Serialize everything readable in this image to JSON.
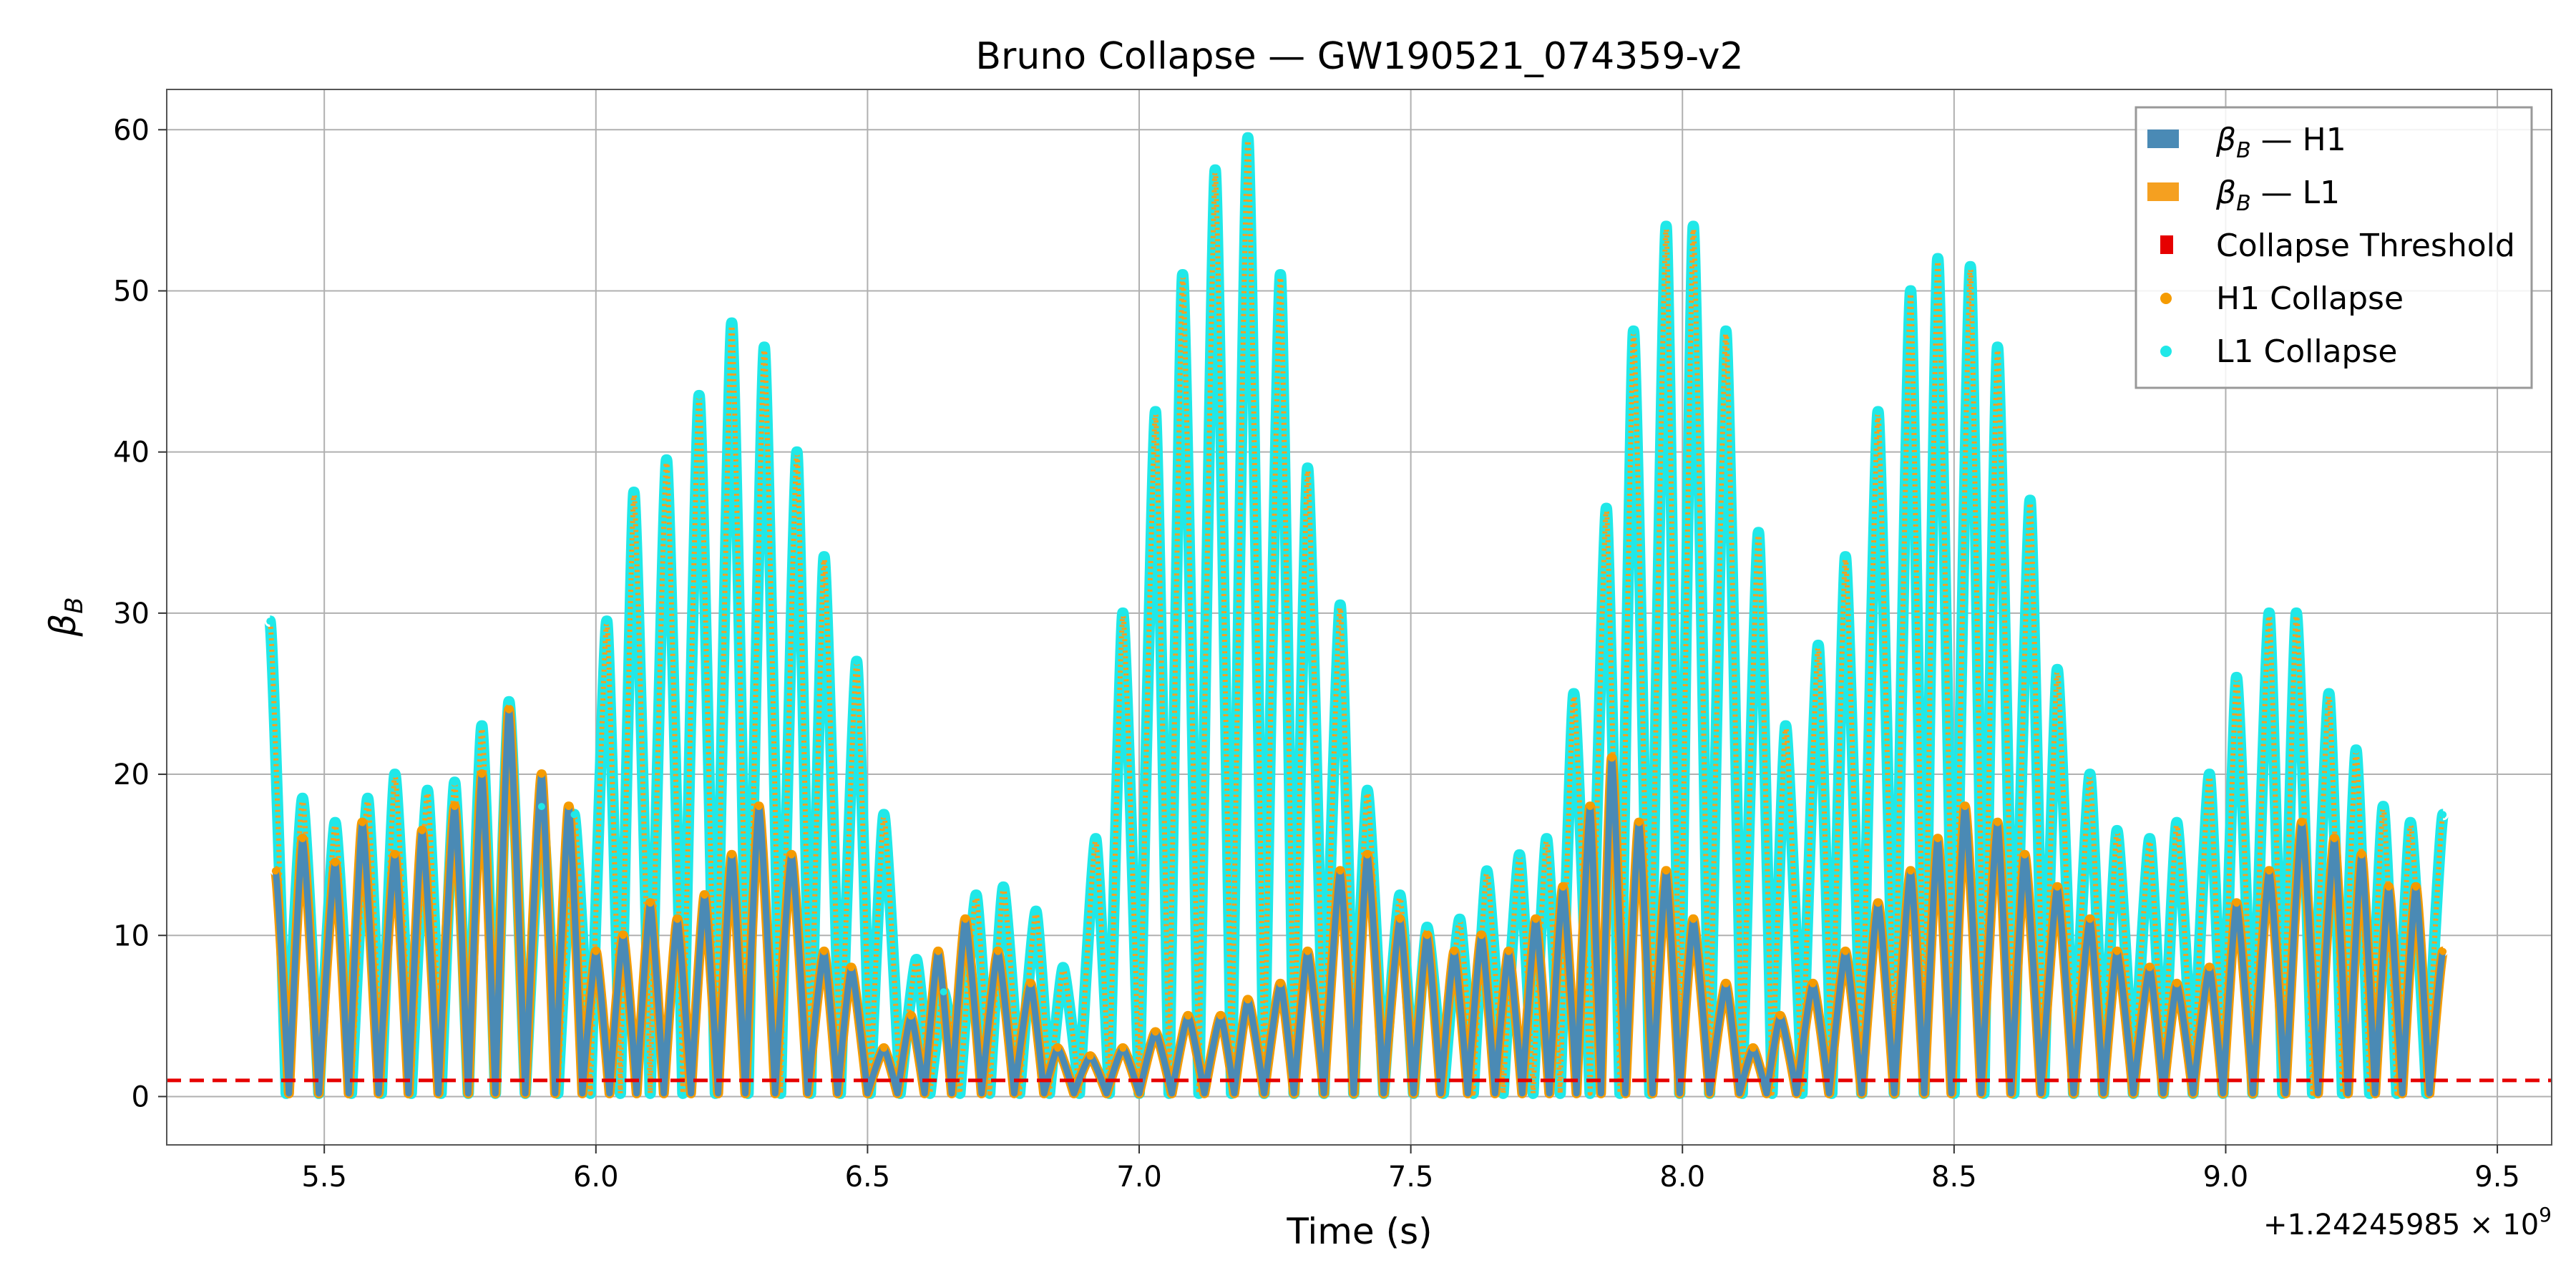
{
  "chart_data": {
    "type": "line",
    "title": "Bruno Collapse — GW190521_074359-v2",
    "xlabel": "Time (s)",
    "ylabel": "β_B",
    "x_offset_text": "+1.24245985 × 10^9",
    "xlim": [
      5.21,
      9.6
    ],
    "ylim": [
      -3,
      62.5
    ],
    "xticks": [
      5.5,
      6.0,
      6.5,
      7.0,
      7.5,
      8.0,
      8.5,
      9.0,
      9.5
    ],
    "xtick_labels": [
      "5.5",
      "6.0",
      "6.5",
      "7.0",
      "7.5",
      "8.0",
      "8.5",
      "9.0",
      "9.5"
    ],
    "yticks": [
      0,
      10,
      20,
      30,
      40,
      50,
      60
    ],
    "ytick_labels": [
      "0",
      "10",
      "20",
      "30",
      "40",
      "50",
      "60"
    ],
    "grid": true,
    "legend_position": "top-right",
    "colors": {
      "h1": "#4a8ab5",
      "l1": "#f5a020",
      "threshold": "#e60000",
      "h1_collapse": "#f59b00",
      "l1_collapse": "#20e8e8"
    },
    "threshold": 1.0,
    "legend": [
      {
        "label": "β_B — H1",
        "marker": "patch",
        "color": "#4a8ab5"
      },
      {
        "label": "β_B — L1",
        "marker": "patch",
        "color": "#f5a020"
      },
      {
        "label": "Collapse Threshold",
        "marker": "square",
        "color": "#e60000"
      },
      {
        "label": "H1 Collapse",
        "marker": "dot",
        "color": "#f59b00"
      },
      {
        "label": "L1 Collapse",
        "marker": "dot",
        "color": "#20e8e8"
      }
    ],
    "series": [
      {
        "name": "β_B — H1",
        "peaks": [
          [
            5.41,
            14.0
          ],
          [
            5.46,
            16.0
          ],
          [
            5.52,
            14.5
          ],
          [
            5.57,
            17.0
          ],
          [
            5.63,
            15.0
          ],
          [
            5.68,
            16.5
          ],
          [
            5.74,
            18.0
          ],
          [
            5.79,
            20.0
          ],
          [
            5.84,
            24.0
          ],
          [
            5.9,
            20.0
          ],
          [
            5.95,
            18.0
          ],
          [
            6.0,
            9.0
          ],
          [
            6.05,
            10.0
          ],
          [
            6.1,
            12.0
          ],
          [
            6.15,
            11.0
          ],
          [
            6.2,
            12.5
          ],
          [
            6.25,
            15.0
          ],
          [
            6.3,
            18.0
          ],
          [
            6.36,
            15.0
          ],
          [
            6.42,
            9.0
          ],
          [
            6.47,
            8.0
          ],
          [
            6.53,
            3.0
          ],
          [
            6.58,
            5.0
          ],
          [
            6.63,
            9.0
          ],
          [
            6.68,
            11.0
          ],
          [
            6.74,
            9.0
          ],
          [
            6.8,
            7.0
          ],
          [
            6.85,
            3.0
          ],
          [
            6.91,
            2.5
          ],
          [
            6.97,
            3.0
          ],
          [
            7.03,
            4.0
          ],
          [
            7.09,
            5.0
          ],
          [
            7.15,
            5.0
          ],
          [
            7.2,
            6.0
          ],
          [
            7.26,
            7.0
          ],
          [
            7.31,
            9.0
          ],
          [
            7.37,
            14.0
          ],
          [
            7.42,
            15.0
          ],
          [
            7.48,
            11.0
          ],
          [
            7.53,
            10.0
          ],
          [
            7.58,
            9.0
          ],
          [
            7.63,
            10.0
          ],
          [
            7.68,
            9.0
          ],
          [
            7.73,
            11.0
          ],
          [
            7.78,
            13.0
          ],
          [
            7.83,
            18.0
          ],
          [
            7.87,
            21.0
          ],
          [
            7.92,
            17.0
          ],
          [
            7.97,
            14.0
          ],
          [
            8.02,
            11.0
          ],
          [
            8.08,
            7.0
          ],
          [
            8.13,
            3.0
          ],
          [
            8.18,
            5.0
          ],
          [
            8.24,
            7.0
          ],
          [
            8.3,
            9.0
          ],
          [
            8.36,
            12.0
          ],
          [
            8.42,
            14.0
          ],
          [
            8.47,
            16.0
          ],
          [
            8.52,
            18.0
          ],
          [
            8.58,
            17.0
          ],
          [
            8.63,
            15.0
          ],
          [
            8.69,
            13.0
          ],
          [
            8.75,
            11.0
          ],
          [
            8.8,
            9.0
          ],
          [
            8.86,
            8.0
          ],
          [
            8.91,
            7.0
          ],
          [
            8.97,
            8.0
          ],
          [
            9.02,
            12.0
          ],
          [
            9.08,
            14.0
          ],
          [
            9.14,
            17.0
          ],
          [
            9.2,
            16.0
          ],
          [
            9.25,
            15.0
          ],
          [
            9.3,
            13.0
          ],
          [
            9.35,
            13.0
          ],
          [
            9.4,
            9.0
          ]
        ]
      },
      {
        "name": "β_B — L1",
        "peaks": [
          [
            5.4,
            29.5
          ],
          [
            5.46,
            18.5
          ],
          [
            5.52,
            17.0
          ],
          [
            5.58,
            18.5
          ],
          [
            5.63,
            20.0
          ],
          [
            5.69,
            19.0
          ],
          [
            5.74,
            19.5
          ],
          [
            5.79,
            23.0
          ],
          [
            5.84,
            24.5
          ],
          [
            5.9,
            18.0
          ],
          [
            5.96,
            17.5
          ],
          [
            6.02,
            29.5
          ],
          [
            6.07,
            37.5
          ],
          [
            6.13,
            39.5
          ],
          [
            6.19,
            43.5
          ],
          [
            6.25,
            48.0
          ],
          [
            6.31,
            46.5
          ],
          [
            6.37,
            40.0
          ],
          [
            6.42,
            33.5
          ],
          [
            6.48,
            27.0
          ],
          [
            6.53,
            17.5
          ],
          [
            6.59,
            8.5
          ],
          [
            6.64,
            6.5
          ],
          [
            6.7,
            12.5
          ],
          [
            6.75,
            13.0
          ],
          [
            6.81,
            11.5
          ],
          [
            6.86,
            8.0
          ],
          [
            6.92,
            16.0
          ],
          [
            6.97,
            30.0
          ],
          [
            7.03,
            42.5
          ],
          [
            7.08,
            51.0
          ],
          [
            7.14,
            57.5
          ],
          [
            7.2,
            59.5
          ],
          [
            7.26,
            51.0
          ],
          [
            7.31,
            39.0
          ],
          [
            7.37,
            30.5
          ],
          [
            7.42,
            19.0
          ],
          [
            7.48,
            12.5
          ],
          [
            7.53,
            10.5
          ],
          [
            7.59,
            11.0
          ],
          [
            7.64,
            14.0
          ],
          [
            7.7,
            15.0
          ],
          [
            7.75,
            16.0
          ],
          [
            7.8,
            25.0
          ],
          [
            7.86,
            36.5
          ],
          [
            7.91,
            47.5
          ],
          [
            7.97,
            54.0
          ],
          [
            8.02,
            54.0
          ],
          [
            8.08,
            47.5
          ],
          [
            8.14,
            35.0
          ],
          [
            8.19,
            23.0
          ],
          [
            8.25,
            28.0
          ],
          [
            8.3,
            33.5
          ],
          [
            8.36,
            42.5
          ],
          [
            8.42,
            50.0
          ],
          [
            8.47,
            52.0
          ],
          [
            8.53,
            51.5
          ],
          [
            8.58,
            46.5
          ],
          [
            8.64,
            37.0
          ],
          [
            8.69,
            26.5
          ],
          [
            8.75,
            20.0
          ],
          [
            8.8,
            16.5
          ],
          [
            8.86,
            16.0
          ],
          [
            8.91,
            17.0
          ],
          [
            8.97,
            20.0
          ],
          [
            9.02,
            26.0
          ],
          [
            9.08,
            30.0
          ],
          [
            9.13,
            30.0
          ],
          [
            9.19,
            25.0
          ],
          [
            9.24,
            21.5
          ],
          [
            9.29,
            18.0
          ],
          [
            9.34,
            17.0
          ],
          [
            9.4,
            17.5
          ]
        ]
      }
    ]
  }
}
